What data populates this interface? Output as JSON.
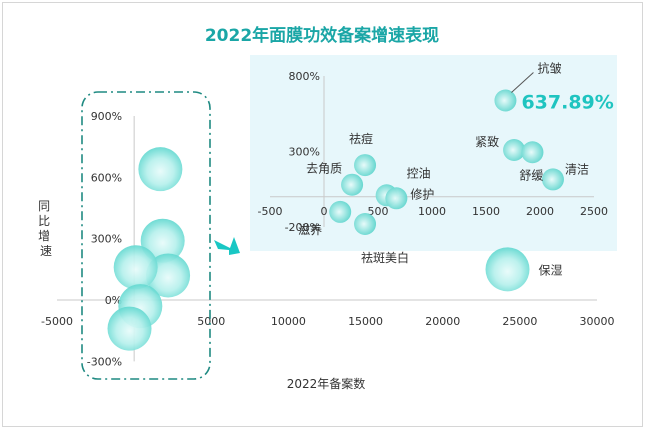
{
  "chart_data": {
    "type": "scatter",
    "title": "2022年面膜功效备案增速表现",
    "xlabel": "2022年备案数",
    "ylabel": "同比增速",
    "main": {
      "xlim": [
        -5000,
        30000
      ],
      "ylim": [
        -300,
        900
      ],
      "x_ticks": [
        "-5000",
        "0",
        "5000",
        "10000",
        "15000",
        "20000",
        "25000",
        "30000"
      ],
      "y_ticks": [
        "900%",
        "600%",
        "300%",
        "0%",
        "-300%"
      ],
      "points": [
        {
          "x": 1700,
          "y": 640
        },
        {
          "x": 1850,
          "y": 290
        },
        {
          "x": 2200,
          "y": 120
        },
        {
          "x": 100,
          "y": 160
        },
        {
          "x": 400,
          "y": -30
        },
        {
          "x": -300,
          "y": -140
        },
        {
          "x": 24200,
          "y": 150,
          "label": "保湿"
        }
      ]
    },
    "inset": {
      "xlim": [
        -500,
        2500
      ],
      "ylim": [
        -200,
        800
      ],
      "x_ticks": [
        "-500",
        "0",
        "500",
        "1000",
        "1500",
        "2000",
        "2500"
      ],
      "y_ticks": [
        "800%",
        "300%",
        "-200%"
      ],
      "points": [
        {
          "x": 1680,
          "y": 637.89,
          "label": "抗皱",
          "value_label": "637.89%"
        },
        {
          "x": 1760,
          "y": 310,
          "label": "紧致"
        },
        {
          "x": 1930,
          "y": 295,
          "label": "舒缓"
        },
        {
          "x": 2120,
          "y": 115,
          "label": "清洁"
        },
        {
          "x": 260,
          "y": 80,
          "label": "去角质"
        },
        {
          "x": 380,
          "y": 210,
          "label": "祛痘"
        },
        {
          "x": 580,
          "y": 10,
          "label": "控油"
        },
        {
          "x": 670,
          "y": -10,
          "label": "修护"
        },
        {
          "x": 150,
          "y": -100,
          "label": "滋养"
        },
        {
          "x": 380,
          "y": -180,
          "label": "祛斑美白"
        }
      ]
    }
  }
}
